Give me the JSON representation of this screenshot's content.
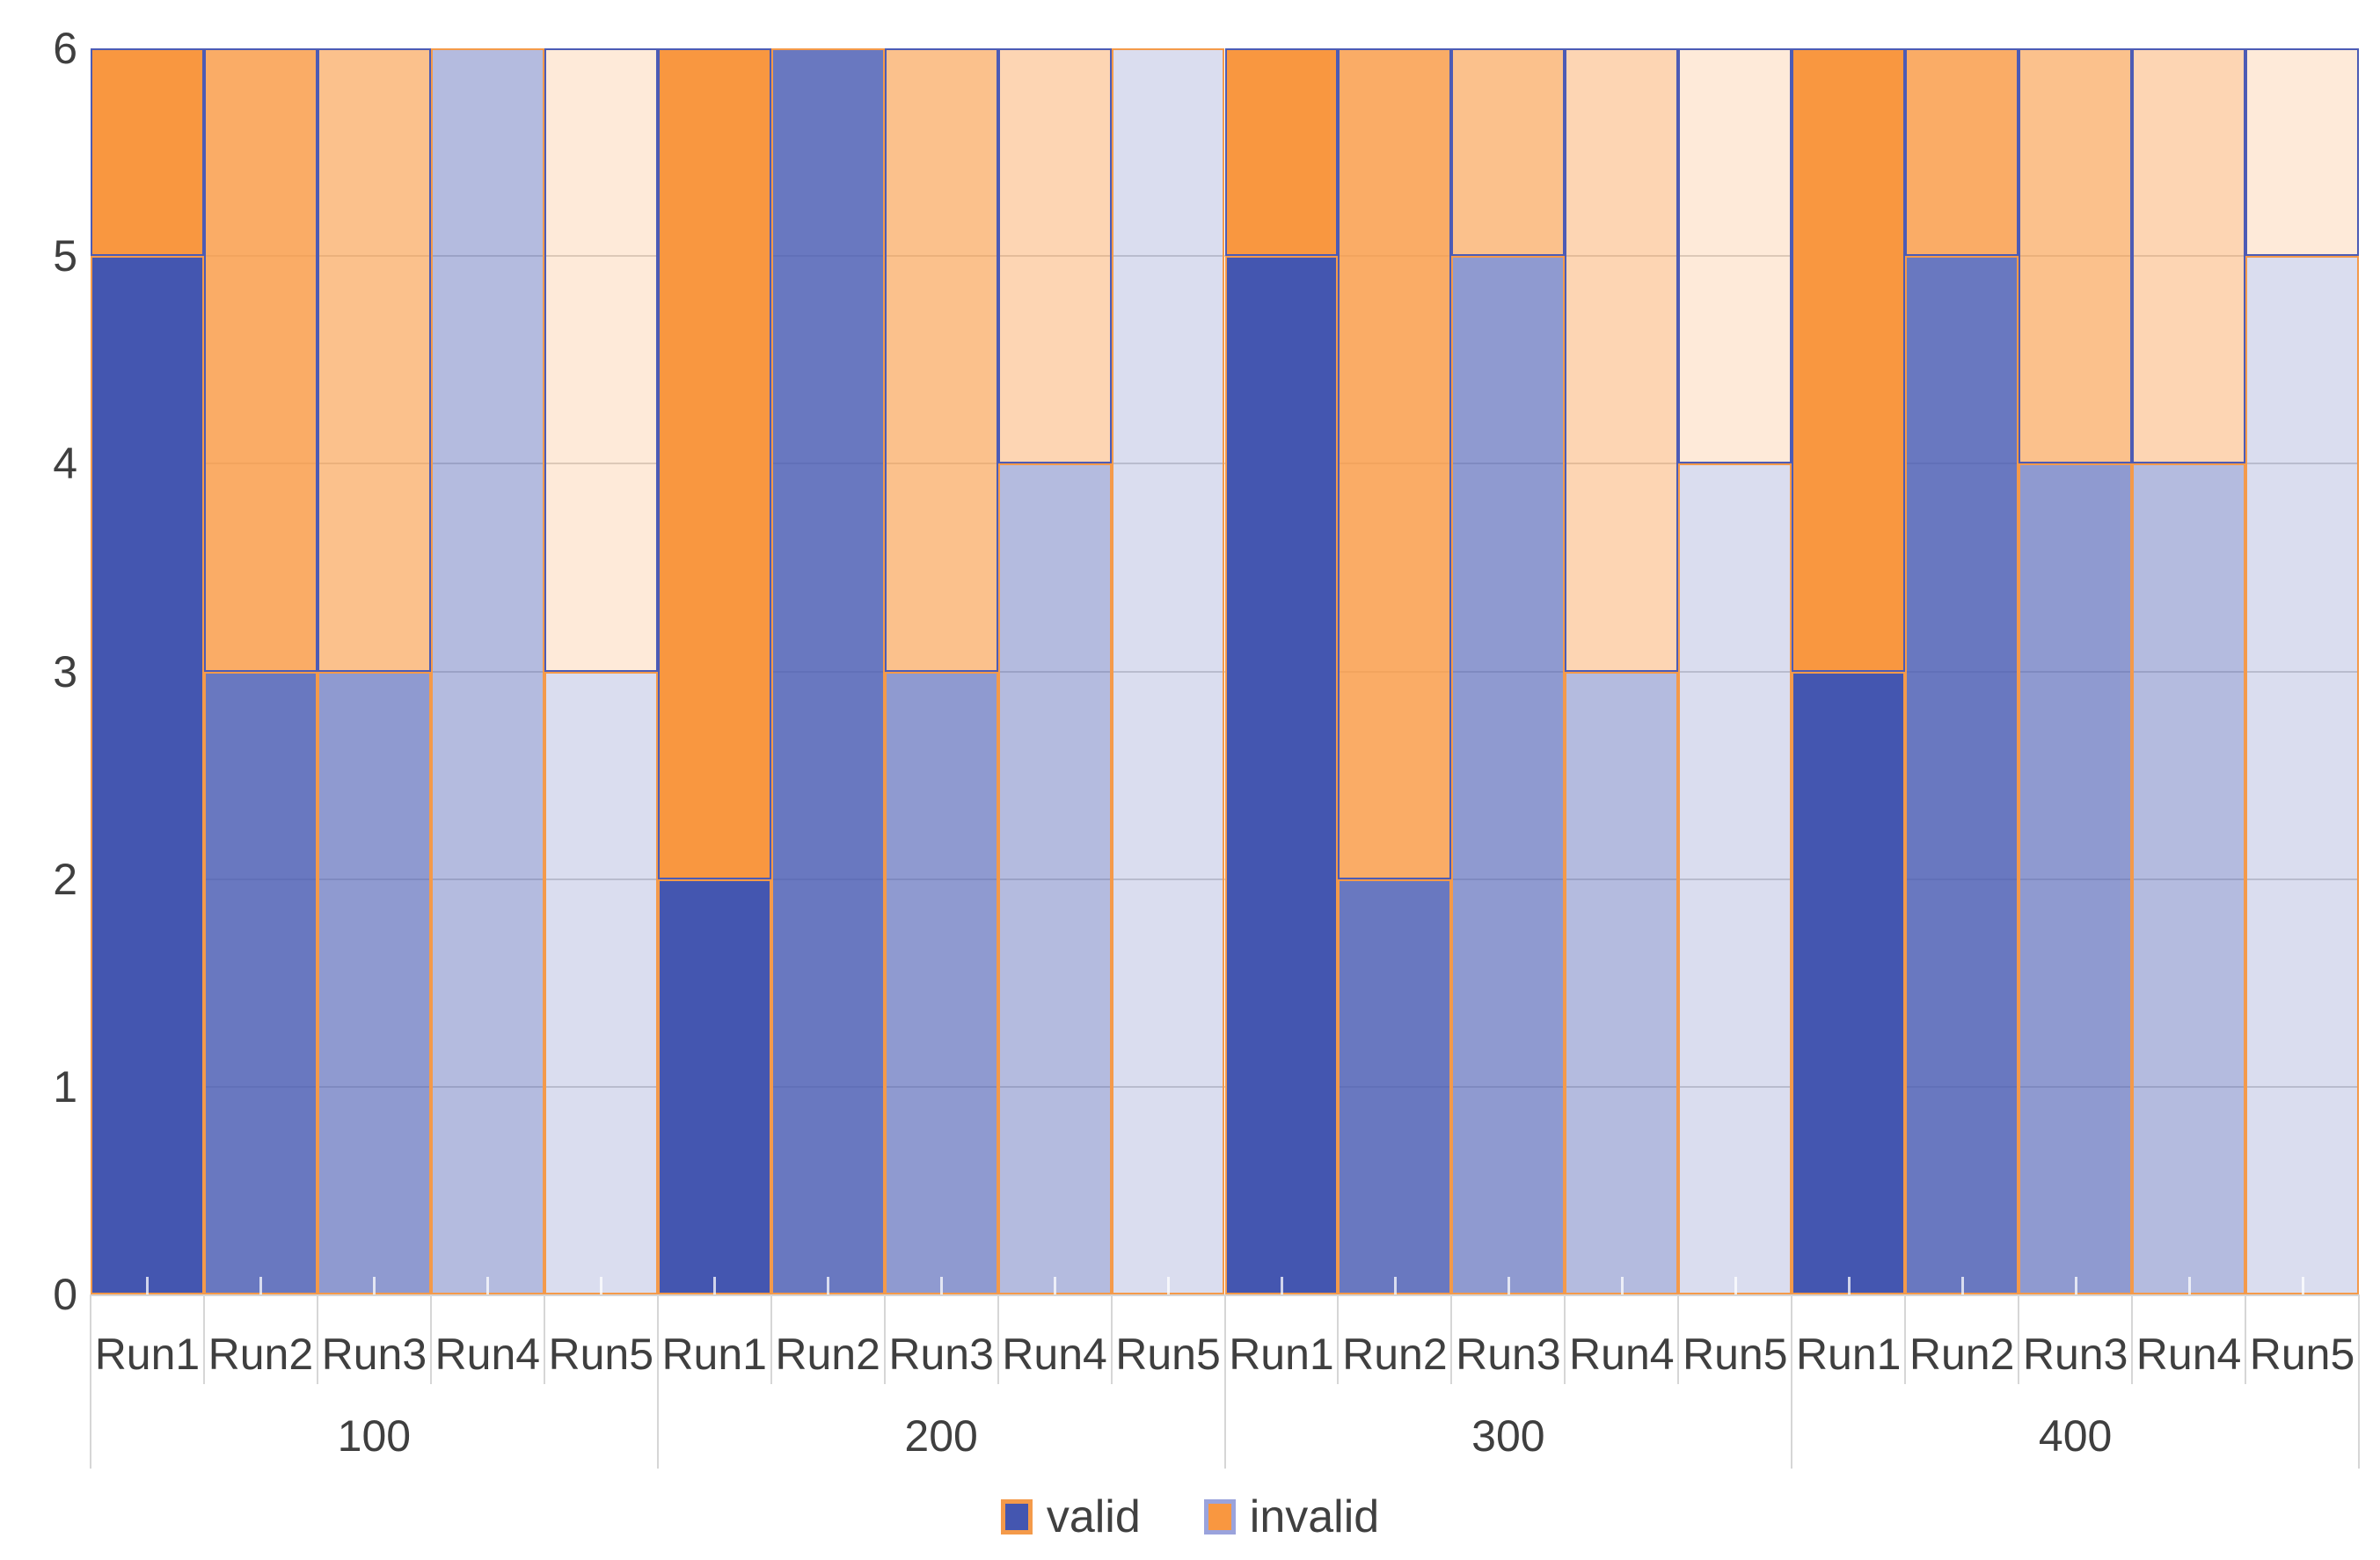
{
  "chart_data": {
    "type": "bar",
    "stacked": true,
    "title": "",
    "x_groups": [
      "100",
      "200",
      "300",
      "400"
    ],
    "x_runs": [
      "Run1",
      "Run2",
      "Run3",
      "Run4",
      "Run5"
    ],
    "y_axis": {
      "min": 0,
      "max": 6,
      "tick_labels": [
        "0",
        "1",
        "2",
        "3",
        "4",
        "5",
        "6"
      ]
    },
    "run_opacity": [
      1,
      0.8,
      0.6,
      0.4,
      0.2
    ],
    "series": [
      {
        "name": "valid",
        "base_color": "#4456B0",
        "border_color": "#F49A4A",
        "values": {
          "100": [
            5,
            3,
            3,
            6,
            3
          ],
          "200": [
            2,
            6,
            3,
            4,
            6
          ],
          "300": [
            5,
            2,
            5,
            3,
            4
          ],
          "400": [
            3,
            5,
            4,
            4,
            5
          ]
        }
      },
      {
        "name": "invalid",
        "base_color": "#F99740",
        "border_color": "#4C5BB5",
        "values": {
          "100": [
            1,
            3,
            3,
            0,
            3
          ],
          "200": [
            4,
            0,
            3,
            2,
            0
          ],
          "300": [
            1,
            4,
            1,
            3,
            2
          ],
          "400": [
            3,
            1,
            2,
            2,
            1
          ]
        }
      }
    ],
    "grid_on": true,
    "grid_color": "#D6D6D6",
    "axis_text_color": "#3F3F3F",
    "legend_position": "bottom"
  },
  "legend": {
    "items": [
      {
        "label": "valid",
        "fill": "#4456B0",
        "border": "#F49A4A"
      },
      {
        "label": "invalid",
        "fill": "#F99740",
        "border": "#9AA3DC"
      }
    ]
  }
}
